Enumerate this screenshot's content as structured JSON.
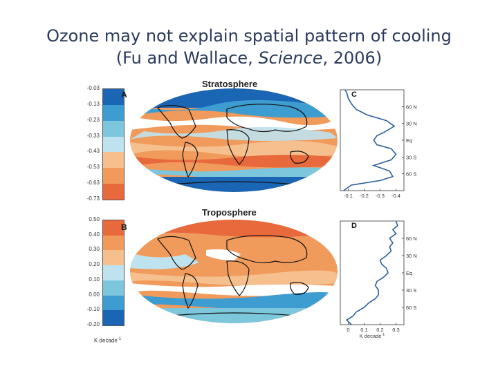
{
  "slide": {
    "title_line1": "Ozone may not explain spatial pattern of cooling",
    "title_line2_prefix": "(Fu and Wallace, ",
    "title_line2_italic": "Science",
    "title_line2_suffix": ", 2006)"
  },
  "colors": {
    "title_text": "#2a3b5c",
    "orange_strong": "#e8693c",
    "orange": "#f09a5c",
    "orange_light": "#f6c08e",
    "cyan_light": "#bfe3ee",
    "cyan": "#7cc7dc",
    "blue": "#3d9cd0",
    "blue_dark": "#1a66b5",
    "profile_line": "#2b5f9e"
  },
  "chart_data": [
    {
      "id": "A",
      "type": "heatmap",
      "title": "Stratosphere",
      "panel_letter": "A",
      "colorbar_labels": [
        "-0.03",
        "-0.13",
        "-0.23",
        "-0.33",
        "-0.43",
        "-0.53",
        "-0.63",
        "-0.73"
      ],
      "colorbar_colors": [
        "#1a66b5",
        "#3d9cd0",
        "#7cc7dc",
        "#bfe3ee",
        "#f6c08e",
        "#f09a5c",
        "#e8693c"
      ]
    },
    {
      "id": "C",
      "type": "line",
      "panel_letter": "C",
      "x_ticks": [
        "-0.1",
        "-0.2",
        "-0.3",
        "-0.4"
      ],
      "xlim": [
        -0.05,
        -0.45
      ],
      "y_ticks": [
        "60 N",
        "30 N",
        "Eq",
        "30 S",
        "60 S"
      ],
      "y_tick_lats": [
        60,
        30,
        0,
        -30,
        -60
      ],
      "ylim": [
        -90,
        90
      ],
      "points": [
        [
          -90,
          -0.07
        ],
        [
          -80,
          -0.12
        ],
        [
          -72,
          -0.3
        ],
        [
          -65,
          -0.38
        ],
        [
          -55,
          -0.36
        ],
        [
          -45,
          -0.26
        ],
        [
          -35,
          -0.37
        ],
        [
          -25,
          -0.4
        ],
        [
          -15,
          -0.37
        ],
        [
          -8,
          -0.28
        ],
        [
          0,
          -0.26
        ],
        [
          8,
          -0.28
        ],
        [
          15,
          -0.33
        ],
        [
          25,
          -0.39
        ],
        [
          35,
          -0.34
        ],
        [
          45,
          -0.22
        ],
        [
          55,
          -0.15
        ],
        [
          65,
          -0.12
        ],
        [
          75,
          -0.1
        ],
        [
          85,
          -0.09
        ],
        [
          90,
          -0.08
        ]
      ]
    },
    {
      "id": "B",
      "type": "heatmap",
      "title": "Troposphere",
      "panel_letter": "B",
      "colorbar_labels": [
        "0.50",
        "0.40",
        "0.30",
        "0.20",
        "0.10",
        "0.00",
        "-0.10",
        "-0.20"
      ],
      "colorbar_colors": [
        "#e8693c",
        "#f09a5c",
        "#f6c08e",
        "#bfe3ee",
        "#7cc7dc",
        "#3d9cd0",
        "#1a66b5"
      ],
      "unit": "K decade",
      "unit_exp": "-1"
    },
    {
      "id": "D",
      "type": "line",
      "panel_letter": "D",
      "x_ticks": [
        "0",
        "0.1",
        "0.2",
        "0.3"
      ],
      "xlim": [
        -0.05,
        0.35
      ],
      "y_ticks": [
        "60 N",
        "30 N",
        "Eq",
        "30 S",
        "60 S"
      ],
      "y_tick_lats": [
        60,
        30,
        0,
        -30,
        -60
      ],
      "ylim": [
        -90,
        90
      ],
      "xlabel": "K decade",
      "xlabel_exp": "-1",
      "points": [
        [
          -90,
          0.02
        ],
        [
          -82,
          -0.01
        ],
        [
          -75,
          0.03
        ],
        [
          -68,
          0.05
        ],
        [
          -60,
          0.1
        ],
        [
          -52,
          0.13
        ],
        [
          -45,
          0.17
        ],
        [
          -38,
          0.19
        ],
        [
          -30,
          0.19
        ],
        [
          -22,
          0.17
        ],
        [
          -15,
          0.18
        ],
        [
          -8,
          0.22
        ],
        [
          0,
          0.25
        ],
        [
          8,
          0.24
        ],
        [
          15,
          0.21
        ],
        [
          22,
          0.2
        ],
        [
          30,
          0.24
        ],
        [
          38,
          0.27
        ],
        [
          45,
          0.26
        ],
        [
          52,
          0.28
        ],
        [
          60,
          0.26
        ],
        [
          68,
          0.3
        ],
        [
          75,
          0.28
        ],
        [
          82,
          0.31
        ],
        [
          90,
          0.3
        ]
      ]
    }
  ]
}
